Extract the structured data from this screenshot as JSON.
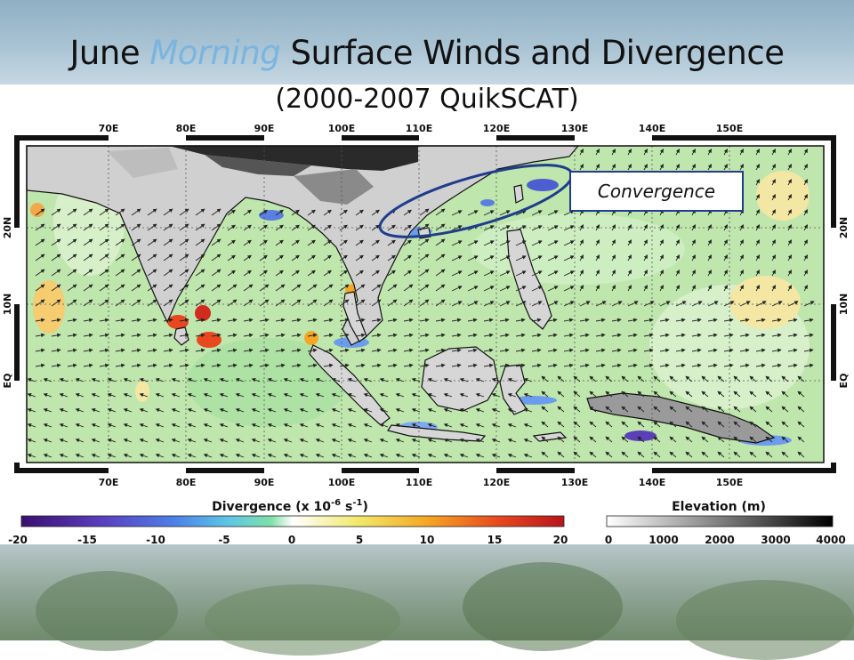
{
  "title": {
    "prefix": "June ",
    "emphasis": "Morning",
    "suffix": " Surface Winds and Divergence",
    "subtitle": "(2000-2007 QuikSCAT)"
  },
  "map": {
    "lon_labels": [
      "70E",
      "80E",
      "90E",
      "100E",
      "110E",
      "120E",
      "130E",
      "140E",
      "150E"
    ],
    "lat_labels": [
      "20N",
      "10N",
      "EQ"
    ],
    "annotation": "Convergence",
    "colors": {
      "land": "#d9d9d9",
      "ocean": "#b9e4a8",
      "coast": "#111111",
      "highlight": "#1f3d8c"
    }
  },
  "divergence_bar": {
    "title_prefix": "Divergence (x 10",
    "title_exp": "-6",
    "title_unit": " s",
    "title_unit_exp": "-1",
    "title_close": ")",
    "ticks": [
      "-20",
      "-15",
      "-10",
      "-5",
      "0",
      "5",
      "10",
      "15",
      "20"
    ],
    "colors": [
      "#3b0f70",
      "#5a3fc0",
      "#4d7fe8",
      "#5cc6e6",
      "#7fe0a8",
      "#ffffff",
      "#f2e96b",
      "#f5a623",
      "#e8481f",
      "#b8141b"
    ]
  },
  "elevation_bar": {
    "title": "Elevation (m)",
    "ticks": [
      "0",
      "1000",
      "2000",
      "3000",
      "4000"
    ],
    "colors": [
      "#ffffff",
      "#000000"
    ]
  }
}
